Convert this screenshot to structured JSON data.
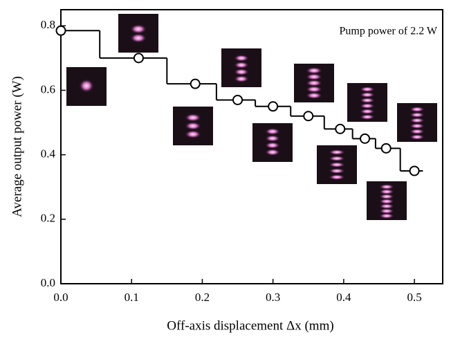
{
  "chart_data": {
    "type": "line",
    "annotation": "Pump power of 2.2 W",
    "xlabel": "Off-axis displacement Δx (mm)",
    "ylabel": "Average output power (W)",
    "x": [
      0,
      0.11,
      0.19,
      0.25,
      0.3,
      0.35,
      0.395,
      0.43,
      0.46,
      0.5
    ],
    "values": [
      0.785,
      0.7,
      0.62,
      0.57,
      0.55,
      0.52,
      0.48,
      0.45,
      0.42,
      0.35
    ],
    "color": "#000000",
    "xlim": [
      0,
      0.54
    ],
    "ylim": [
      0,
      0.85
    ],
    "xticks": [
      {
        "value": 0,
        "label": "0.0"
      },
      0.1,
      0.2,
      0.3,
      0.4,
      0.5
    ],
    "yticks": [
      {
        "value": 0,
        "label": "0.0"
      },
      0.2,
      0.4,
      0.6,
      0.8
    ]
  }
}
